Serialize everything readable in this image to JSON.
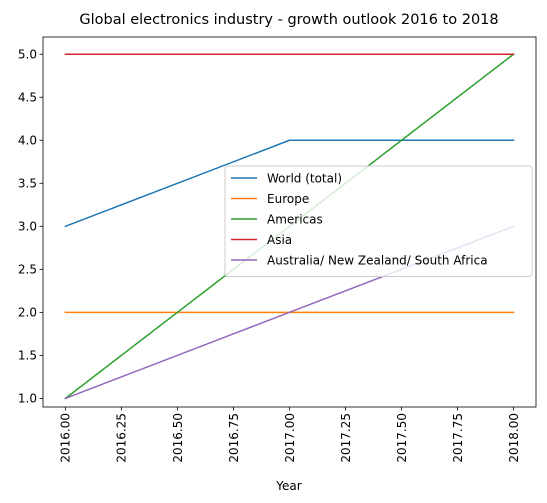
{
  "chart_data": {
    "type": "line",
    "title": "Global electronics industry - growth outlook 2016 to 2018",
    "xlabel": "Year",
    "ylabel": "",
    "x": [
      2016,
      2017,
      2018
    ],
    "xlim": [
      2015.9,
      2018.1
    ],
    "ylim": [
      0.9,
      5.2
    ],
    "xticks": [
      2016.0,
      2016.25,
      2016.5,
      2016.75,
      2017.0,
      2017.25,
      2017.5,
      2017.75,
      2018.0
    ],
    "xtick_labels": [
      "2016.00",
      "2016.25",
      "2016.50",
      "2016.75",
      "2017.00",
      "2017.25",
      "2017.50",
      "2017.75",
      "2018.00"
    ],
    "yticks": [
      1.0,
      1.5,
      2.0,
      2.5,
      3.0,
      3.5,
      4.0,
      4.5,
      5.0
    ],
    "ytick_labels": [
      "1.0",
      "1.5",
      "2.0",
      "2.5",
      "3.0",
      "3.5",
      "4.0",
      "4.5",
      "5.0"
    ],
    "grid": false,
    "legend_position": "center-right",
    "series": [
      {
        "name": "World (total)",
        "color": "#1f77b4",
        "values": [
          3,
          4,
          4
        ]
      },
      {
        "name": "Europe",
        "color": "#ff7f0e",
        "values": [
          2,
          2,
          2
        ]
      },
      {
        "name": "Americas",
        "color": "#2ca02c",
        "values": [
          1,
          3,
          5
        ]
      },
      {
        "name": "Asia",
        "color": "#d62728",
        "values": [
          5,
          5,
          5
        ]
      },
      {
        "name": "Australia/ New Zealand/ South Africa",
        "color": "#9467bd",
        "values": [
          1,
          2,
          3
        ]
      }
    ]
  }
}
